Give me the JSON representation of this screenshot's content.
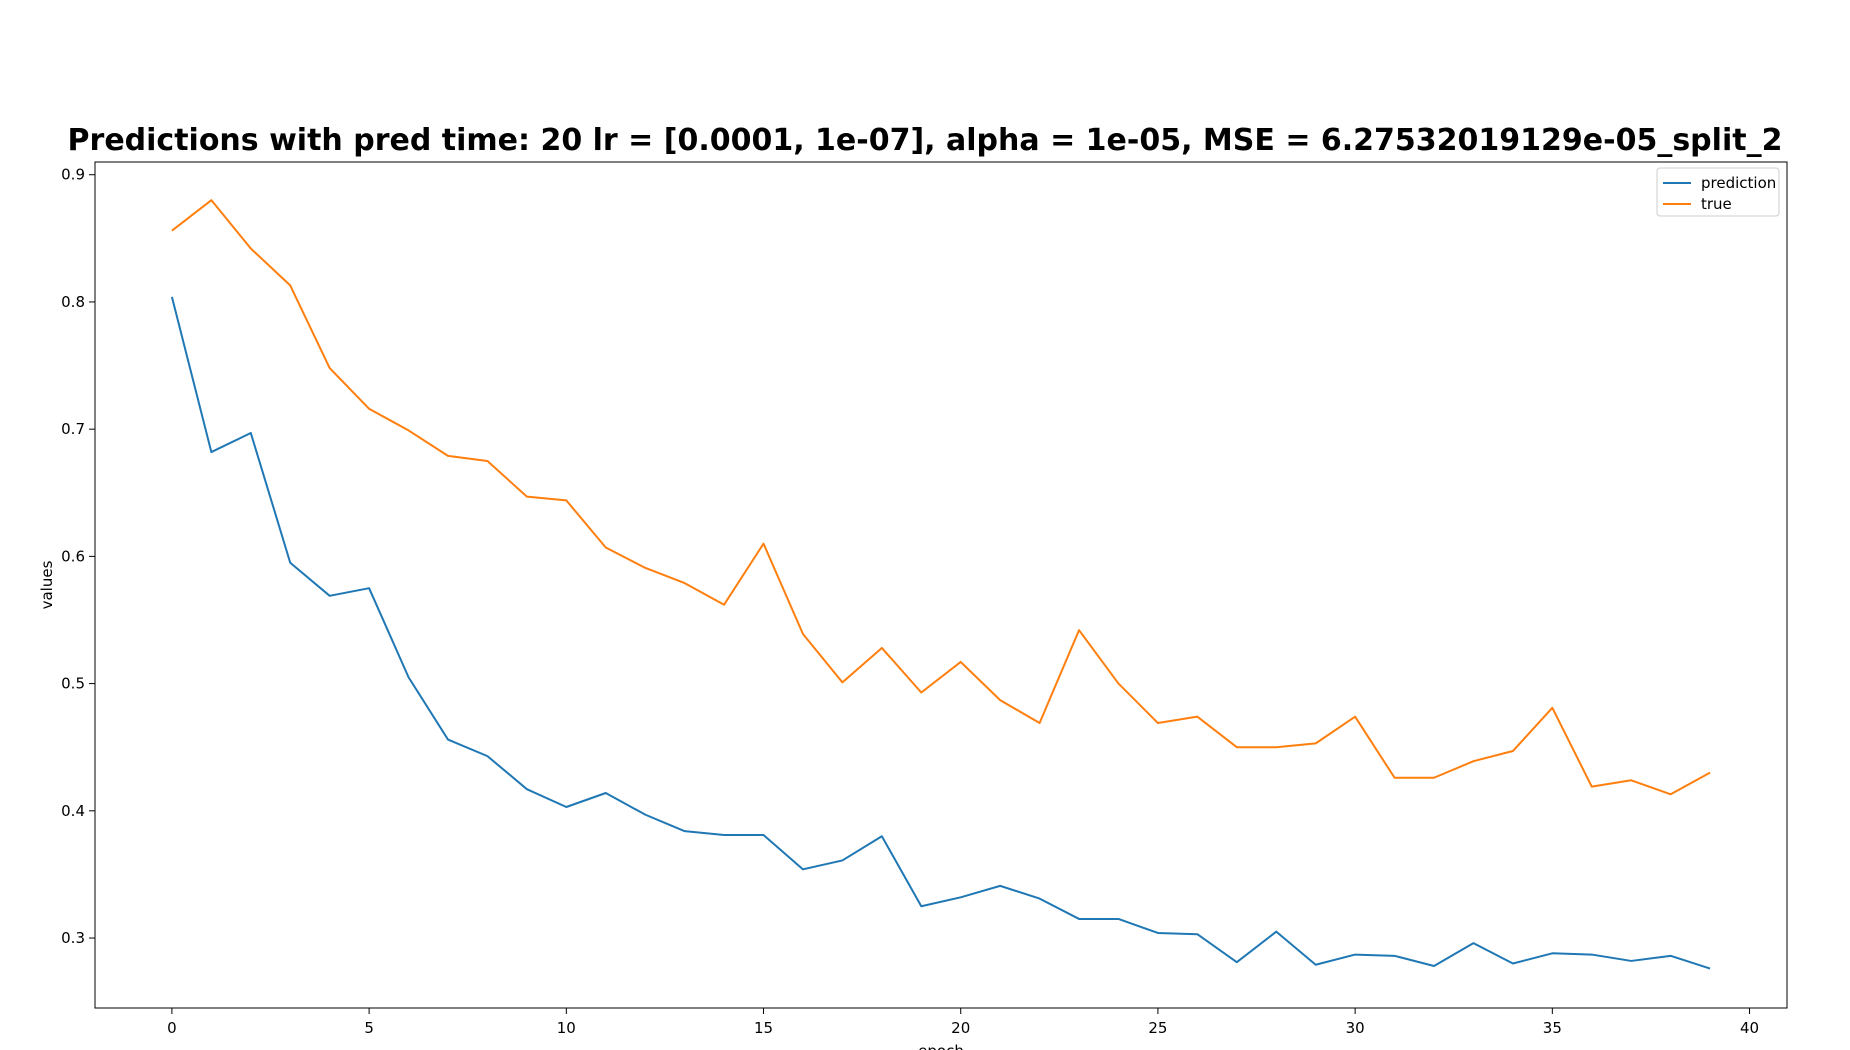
{
  "chart_data": {
    "type": "line",
    "title": "Predictions with pred time: 20 lr = [0.0001, 1e-07], alpha = 1e-05, MSE = 6.27532019129e-05_split_2",
    "xlabel": "epoch",
    "ylabel": "values",
    "xlim": [
      -1.95,
      40.95
    ],
    "ylim": [
      0.245,
      0.91
    ],
    "xticks": [
      0,
      5,
      10,
      15,
      20,
      25,
      30,
      35,
      40
    ],
    "yticks": [
      0.3,
      0.4,
      0.5,
      0.6,
      0.7,
      0.8,
      0.9
    ],
    "legend_position": "top-right",
    "x": [
      0,
      1,
      2,
      3,
      4,
      5,
      6,
      7,
      8,
      9,
      10,
      11,
      12,
      13,
      14,
      15,
      16,
      17,
      18,
      19,
      20,
      21,
      22,
      23,
      24,
      25,
      26,
      27,
      28,
      29,
      30,
      31,
      32,
      33,
      34,
      35,
      36,
      37,
      38,
      39
    ],
    "series": [
      {
        "name": "prediction",
        "color": "#1f77b4",
        "values": [
          0.804,
          0.682,
          0.697,
          0.595,
          0.569,
          0.575,
          0.505,
          0.456,
          0.443,
          0.417,
          0.403,
          0.414,
          0.397,
          0.384,
          0.381,
          0.381,
          0.354,
          0.361,
          0.38,
          0.325,
          0.332,
          0.341,
          0.331,
          0.315,
          0.315,
          0.304,
          0.303,
          0.281,
          0.305,
          0.279,
          0.287,
          0.286,
          0.278,
          0.296,
          0.28,
          0.288,
          0.287,
          0.282,
          0.286,
          0.276
        ]
      },
      {
        "name": "true",
        "color": "#ff7f0e",
        "values": [
          0.856,
          0.88,
          0.842,
          0.813,
          0.748,
          0.716,
          0.699,
          0.679,
          0.675,
          0.647,
          0.644,
          0.607,
          0.591,
          0.579,
          0.562,
          0.61,
          0.539,
          0.501,
          0.528,
          0.493,
          0.517,
          0.487,
          0.469,
          0.542,
          0.5,
          0.469,
          0.474,
          0.45,
          0.45,
          0.453,
          0.474,
          0.426,
          0.426,
          0.439,
          0.447,
          0.481,
          0.419,
          0.424,
          0.413,
          0.43
        ]
      }
    ]
  }
}
